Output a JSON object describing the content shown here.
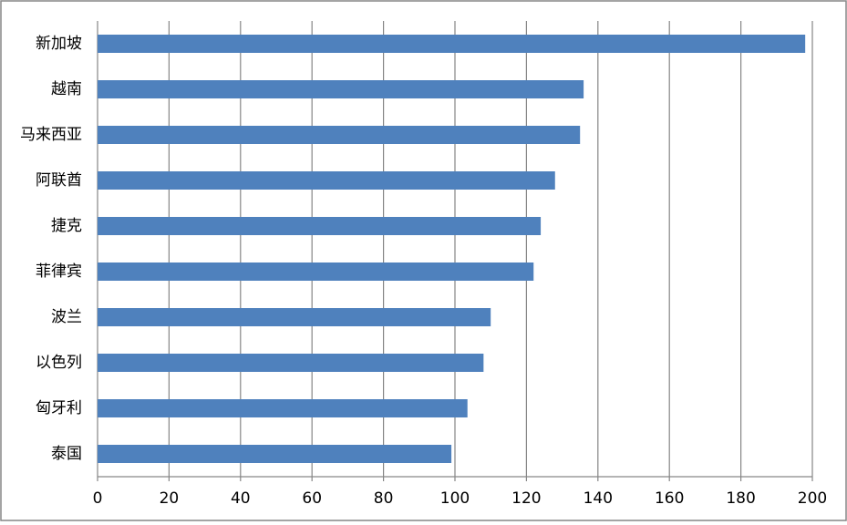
{
  "chart_data": {
    "type": "bar",
    "orientation": "horizontal",
    "categories": [
      "新加坡",
      "越南",
      "马来西亚",
      "阿联酋",
      "捷克",
      "菲律宾",
      "波兰",
      "以色列",
      "匈牙利",
      "泰国"
    ],
    "values": [
      198,
      136,
      135,
      128,
      124,
      122,
      110,
      108,
      103.5,
      99
    ],
    "color": "#4f81bd",
    "xlim": [
      0,
      200
    ],
    "xticks": [
      0,
      20,
      40,
      60,
      80,
      100,
      120,
      140,
      160,
      180,
      200
    ],
    "grid": true
  }
}
